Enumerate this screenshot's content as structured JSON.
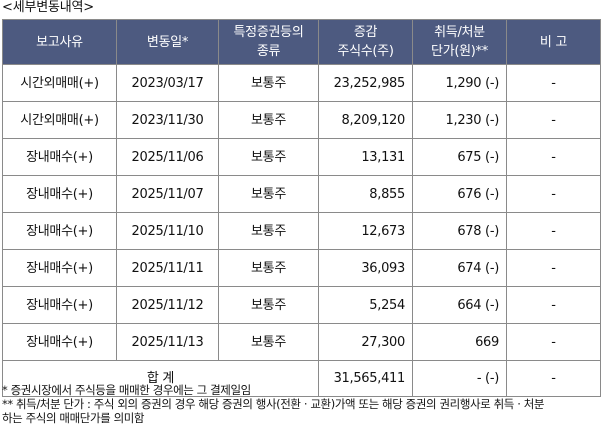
{
  "section_title": "<세부변동내역>",
  "table": {
    "headers": {
      "reason": "보고사유",
      "change_date": "변동일*",
      "security_type_line1": "특정증권등의",
      "security_type_line2": "종류",
      "change_line1": "증감",
      "change_line2": "주식수(주)",
      "price_line1": "취득/처분",
      "price_line2": "단가(원)**",
      "remarks": "비 고"
    },
    "rows": [
      {
        "reason": "시간외매매(+)",
        "date": "2023/03/17",
        "type": "보통주",
        "shares": "23,252,985",
        "price": "1,290 (-)",
        "remarks": "-"
      },
      {
        "reason": "시간외매매(+)",
        "date": "2023/11/30",
        "type": "보통주",
        "shares": "8,209,120",
        "price": "1,230 (-)",
        "remarks": "-"
      },
      {
        "reason": "장내매수(+)",
        "date": "2025/11/06",
        "type": "보통주",
        "shares": "13,131",
        "price": "675 (-)",
        "remarks": "-"
      },
      {
        "reason": "장내매수(+)",
        "date": "2025/11/07",
        "type": "보통주",
        "shares": "8,855",
        "price": "676 (-)",
        "remarks": "-"
      },
      {
        "reason": "장내매수(+)",
        "date": "2025/11/10",
        "type": "보통주",
        "shares": "12,673",
        "price": "678 (-)",
        "remarks": "-"
      },
      {
        "reason": "장내매수(+)",
        "date": "2025/11/11",
        "type": "보통주",
        "shares": "36,093",
        "price": "674 (-)",
        "remarks": "-"
      },
      {
        "reason": "장내매수(+)",
        "date": "2025/11/12",
        "type": "보통주",
        "shares": "5,254",
        "price": "664 (-)",
        "remarks": "-"
      },
      {
        "reason": "장내매수(+)",
        "date": "2025/11/13",
        "type": "보통주",
        "shares": "27,300",
        "price": "669",
        "remarks": "-"
      }
    ],
    "total": {
      "label": "합 계",
      "shares": "31,565,411",
      "price": "- (-)",
      "remarks": "-"
    }
  },
  "notes": {
    "note1": "* 증권시장에서 주식등을 매매한 경우에는 그 결제일임",
    "note2_line1": "** 취득/처분 단가 : 주식 외의 증권의 경우 해당 증권의 행사(전환 · 교환)가액 또는 해당 증권의 권리행사로 취득 · 처분",
    "note2_line2": "하는 주식의 매매단가를 의미함"
  }
}
